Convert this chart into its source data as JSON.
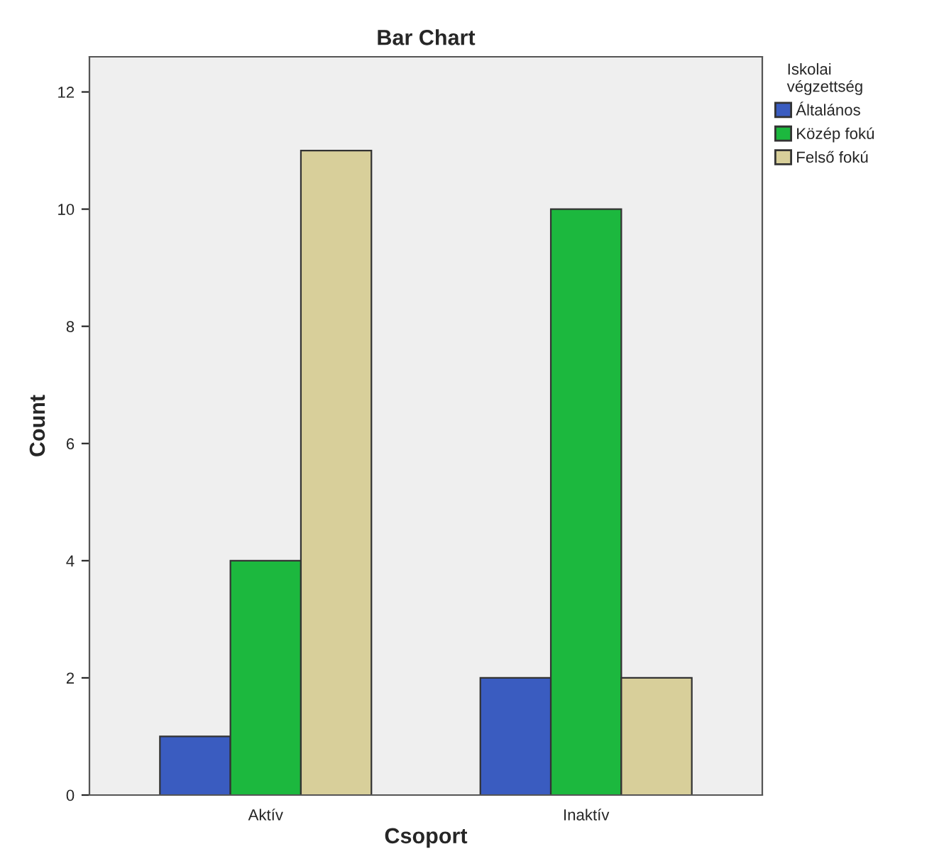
{
  "chart_data": {
    "type": "bar",
    "title": "Bar Chart",
    "xlabel": "Csoport",
    "ylabel": "Count",
    "legend_title": "Iskolai\nvégzettség",
    "categories": [
      "Aktív",
      "Inaktív"
    ],
    "series": [
      {
        "name": "Általános",
        "color": "#3a5cc0",
        "values": [
          1,
          2
        ]
      },
      {
        "name": "Közép fokú",
        "color": "#1cb83e",
        "values": [
          4,
          10
        ]
      },
      {
        "name": "Felső fokú",
        "color": "#d8cf9a",
        "values": [
          11,
          2
        ]
      }
    ],
    "ylim": [
      0,
      12.6
    ],
    "yticks": [
      0,
      2,
      4,
      6,
      8,
      10,
      12
    ],
    "grid": false,
    "legend": "right"
  }
}
